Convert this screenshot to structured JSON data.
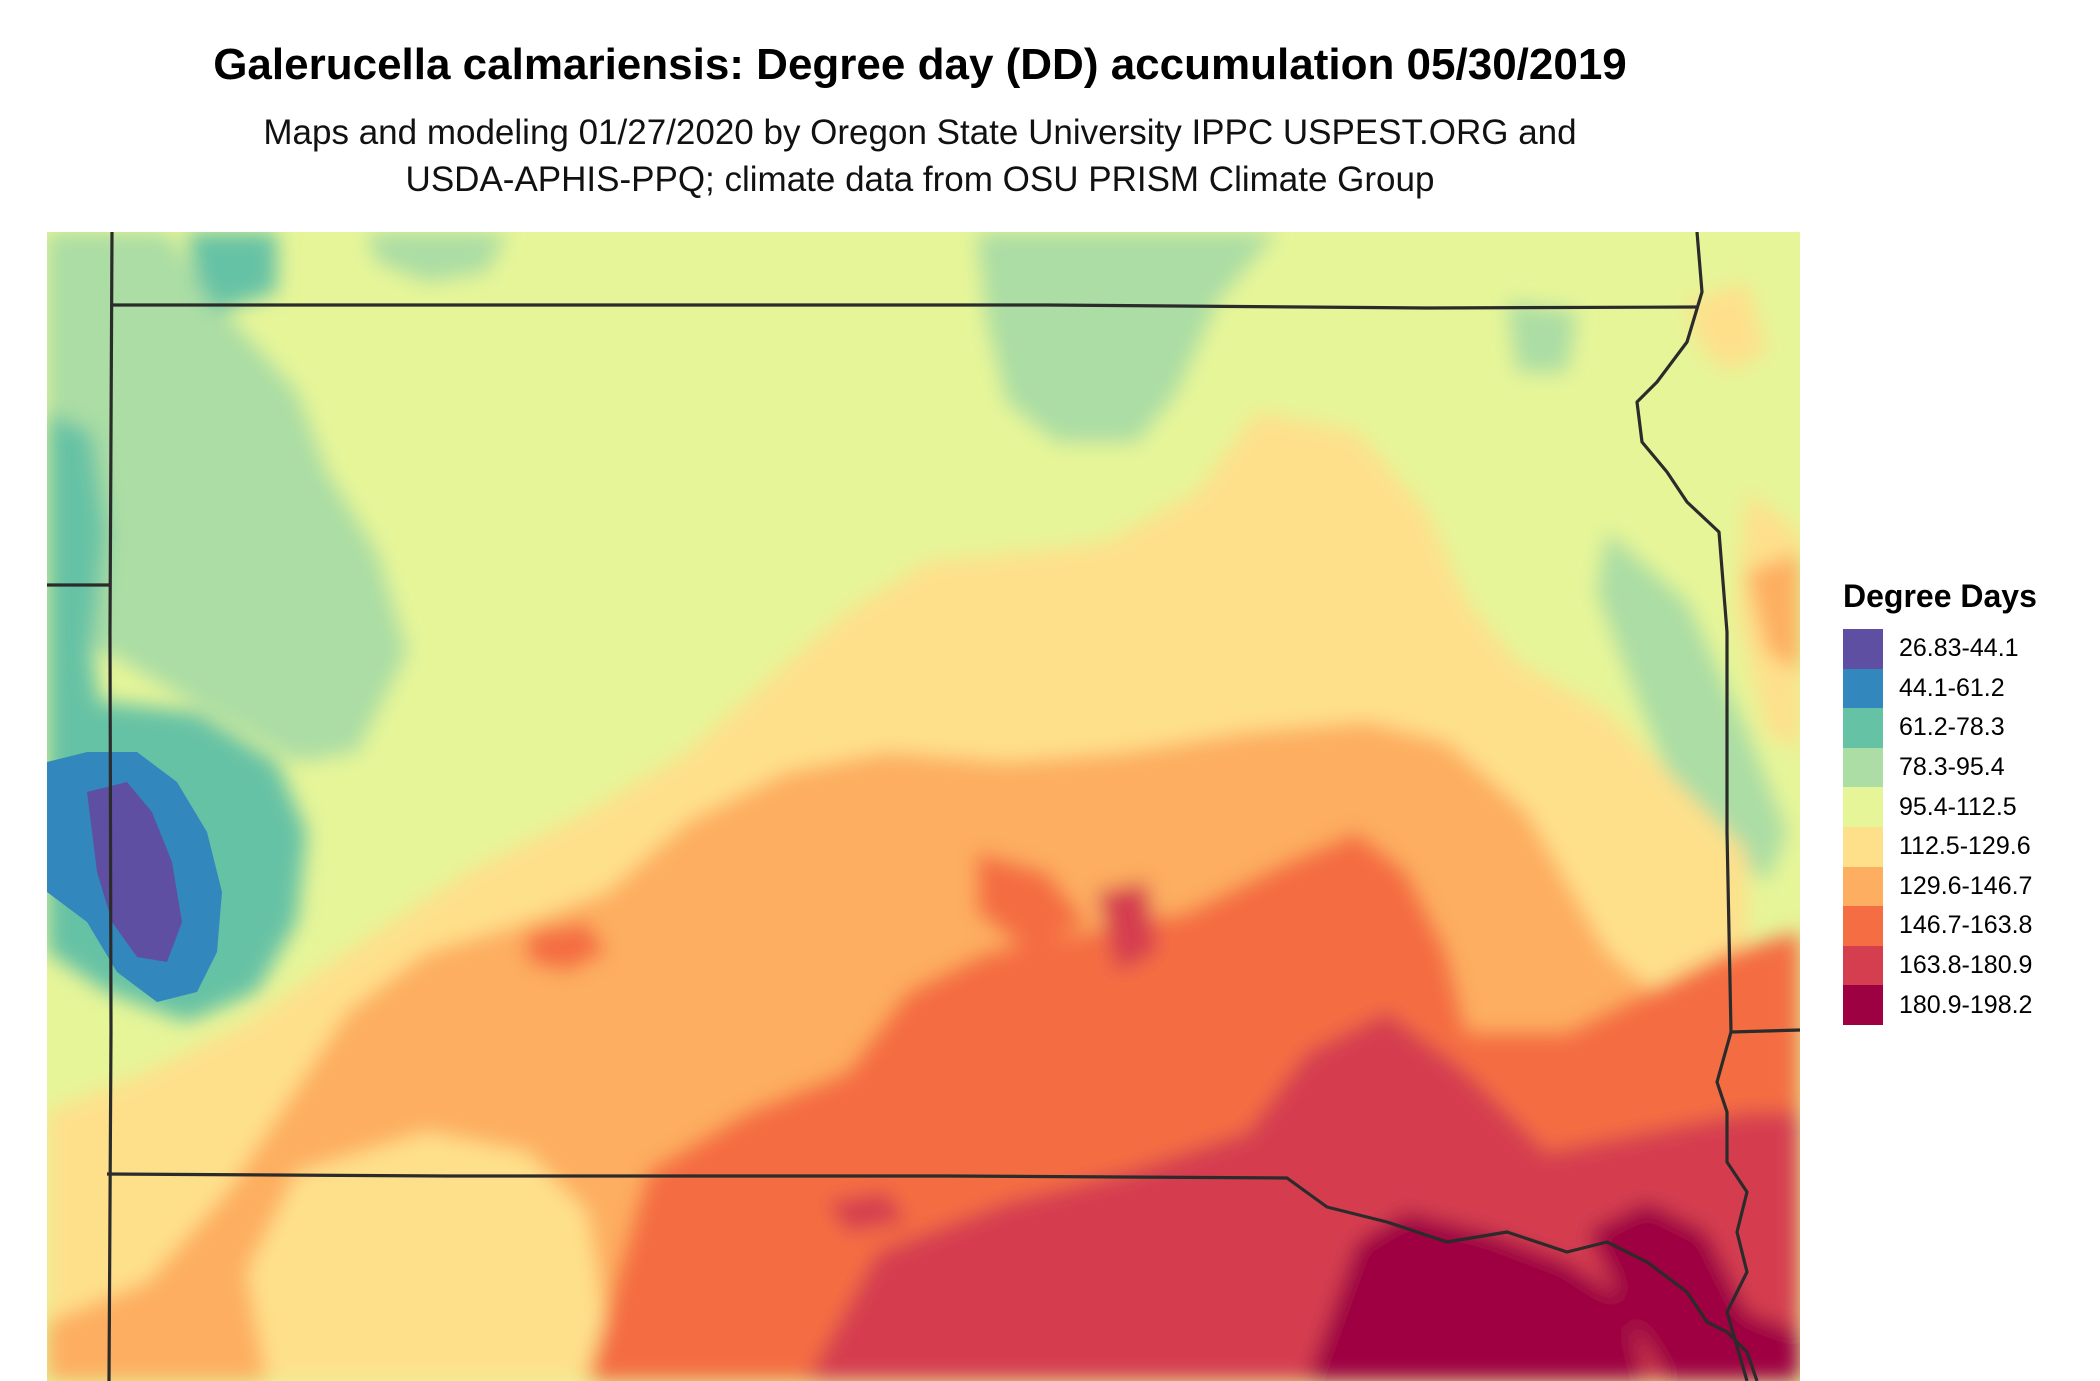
{
  "title": "Galerucella calmariensis: Degree day (DD) accumulation 05/30/2019",
  "subtitle": [
    "Maps and modeling 01/27/2020 by Oregon State University IPPC USPEST.ORG and",
    "USDA-APHIS-PPQ; climate data from OSU PRISM Climate Group"
  ],
  "legend": {
    "title": "Degree Days",
    "classes": [
      {
        "label": "26.83-44.1",
        "color": "#5e4fa2"
      },
      {
        "label": "44.1-61.2",
        "color": "#3288bd"
      },
      {
        "label": "61.2-78.3",
        "color": "#66c2a5"
      },
      {
        "label": "78.3-95.4",
        "color": "#abdda4"
      },
      {
        "label": "95.4-112.5",
        "color": "#e6f598"
      },
      {
        "label": "112.5-129.6",
        "color": "#fee08b"
      },
      {
        "label": "129.6-146.7",
        "color": "#fdae61"
      },
      {
        "label": "146.7-163.8",
        "color": "#f46d43"
      },
      {
        "label": "163.8-180.9",
        "color": "#d53e4f"
      },
      {
        "label": "180.9-198.2",
        "color": "#9e0142"
      }
    ]
  },
  "map": {
    "border_color": "#2b2b2b"
  }
}
